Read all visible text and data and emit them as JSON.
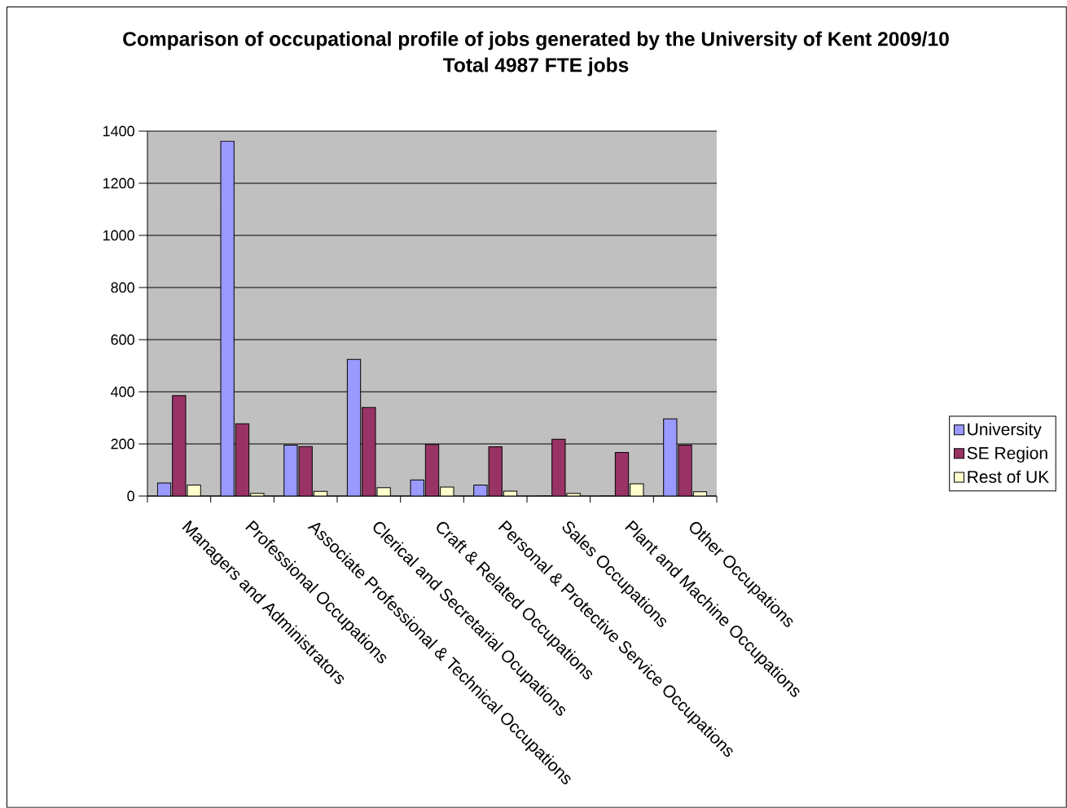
{
  "chart_data": {
    "type": "bar",
    "title": "Comparison of occupational profile of jobs generated by the University of Kent 2009/10",
    "subtitle": "Total 4987 FTE jobs",
    "categories": [
      "Managers and Administrators",
      "Professional Occupations",
      "Associate Professional & Technical Occupations",
      "Clerical and Secretarial Ocupations",
      "Craft & Related Occupations",
      "Personal & Protective Service Occupations",
      "Sales Occupations",
      "Plant and Machine Occupations",
      "Other Occupations"
    ],
    "series": [
      {
        "name": "University",
        "color": "#9999ff",
        "values": [
          50,
          1362,
          195,
          524,
          62,
          42,
          0,
          0,
          296
        ]
      },
      {
        "name": "SE Region",
        "color": "#993366",
        "values": [
          385,
          277,
          190,
          340,
          198,
          189,
          218,
          167,
          195
        ]
      },
      {
        "name": "Rest of UK",
        "color": "#ffffcc",
        "values": [
          42,
          10,
          18,
          32,
          34,
          19,
          10,
          47,
          16
        ]
      }
    ],
    "ylim": [
      0,
      1400
    ],
    "yticks": [
      0,
      200,
      400,
      600,
      800,
      1000,
      1200,
      1400
    ],
    "grid": "y",
    "legend": "right"
  }
}
